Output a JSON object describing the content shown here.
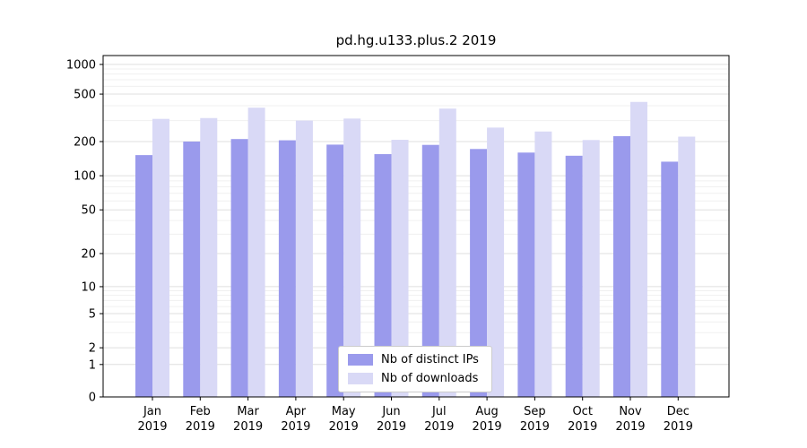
{
  "chart_data": {
    "type": "bar",
    "title": "pd.hg.u133.plus.2 2019",
    "x_months": [
      "Jan",
      "Feb",
      "Mar",
      "Apr",
      "May",
      "Jun",
      "Jul",
      "Aug",
      "Sep",
      "Oct",
      "Nov",
      "Dec"
    ],
    "x_year": "2019",
    "categories": [
      "Jan 2019",
      "Feb 2019",
      "Mar 2019",
      "Apr 2019",
      "May 2019",
      "Jun 2019",
      "Jul 2019",
      "Aug 2019",
      "Sep 2019",
      "Oct 2019",
      "Nov 2019",
      "Dec 2019"
    ],
    "series": [
      {
        "name": "Nb of distinct IPs",
        "color": "#9a9aec",
        "values": [
          152,
          200,
          210,
          205,
          188,
          155,
          187,
          172,
          160,
          150,
          222,
          133
        ]
      },
      {
        "name": "Nb of downloads",
        "color": "#d9d9f6",
        "values": [
          310,
          315,
          385,
          300,
          312,
          207,
          378,
          262,
          243,
          206,
          430,
          220
        ]
      }
    ],
    "yticks": [
      0,
      1,
      2,
      5,
      10,
      20,
      50,
      100,
      200,
      500,
      1000
    ],
    "yscale": "symlog",
    "ylim": [
      0,
      1200
    ],
    "xlabel": "",
    "ylabel": "",
    "grid": true,
    "legend_position": "lower center"
  }
}
